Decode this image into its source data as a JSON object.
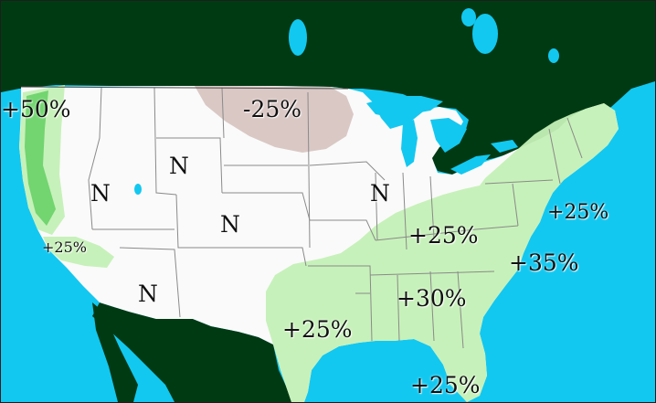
{
  "map": {
    "colors": {
      "ocean": "#12c8f0",
      "canada_mexico": "#003a13",
      "usa": "#fafafa",
      "borders": "#8a8a8a",
      "increase_light": "#c4f0b6",
      "increase_strong": "#6ed36c",
      "decrease": "#d8c5c2",
      "lakes": "#12c8f0"
    },
    "labels": {
      "west_coast_north": "+50%",
      "california": "+25%",
      "northern_plains": "-25%",
      "great_basin": "N",
      "wyoming": "N",
      "colorado": "N",
      "southwest": "N",
      "illinois": "N",
      "ohio_valley": "+25%",
      "northeast": "+25%",
      "mid_atlantic": "+35%",
      "southeast": "+30%",
      "texas": "+25%",
      "florida": "+25%"
    }
  }
}
